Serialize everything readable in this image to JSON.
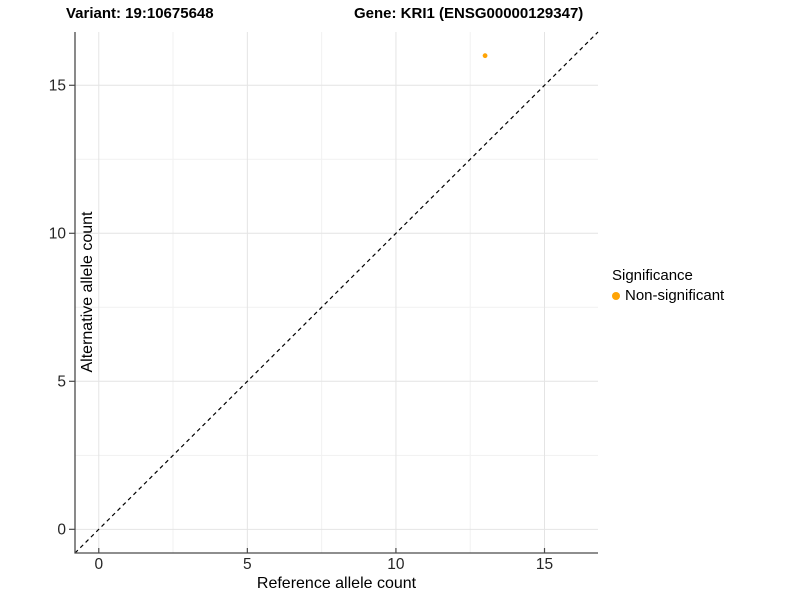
{
  "titles": {
    "variant": "Variant: 19:10675648",
    "gene": "Gene: KRI1 (ENSG00000129347)"
  },
  "legend": {
    "title": "Significance",
    "items": [
      {
        "label": "Non-significant",
        "color": "#FFA405"
      }
    ]
  },
  "colors": {
    "background": "#FFFFFF",
    "grid_major": "#E4E4E4",
    "grid_minor": "#F1F1F1",
    "axis_line": "#4A4A4A",
    "tick_mark": "#4A4A4A",
    "tick_text": "#262626",
    "reference_line": "#000000",
    "point": "#FFA405"
  },
  "chart_data": {
    "type": "scatter",
    "title": "Variant: 19:10675648   Gene: KRI1 (ENSG00000129347)",
    "xlabel": "Reference allele count",
    "ylabel": "Alternative allele count",
    "xlim": [
      -0.8,
      16.8
    ],
    "ylim": [
      -0.8,
      16.8
    ],
    "x_major_ticks": [
      0,
      5,
      10,
      15
    ],
    "x_minor_ticks": [
      2.5,
      7.5,
      12.5
    ],
    "y_major_ticks": [
      0,
      5,
      10,
      15
    ],
    "y_minor_ticks": [
      2.5,
      7.5,
      12.5
    ],
    "grid": "major and minor gridlines on white panel",
    "legend_position": "right-center",
    "series": [
      {
        "name": "Non-significant",
        "color": "#FFA405",
        "points": [
          {
            "x": 13,
            "y": 16
          }
        ]
      }
    ],
    "reference_line": {
      "kind": "identity y=x",
      "style": "dashed",
      "color": "#000000"
    }
  }
}
